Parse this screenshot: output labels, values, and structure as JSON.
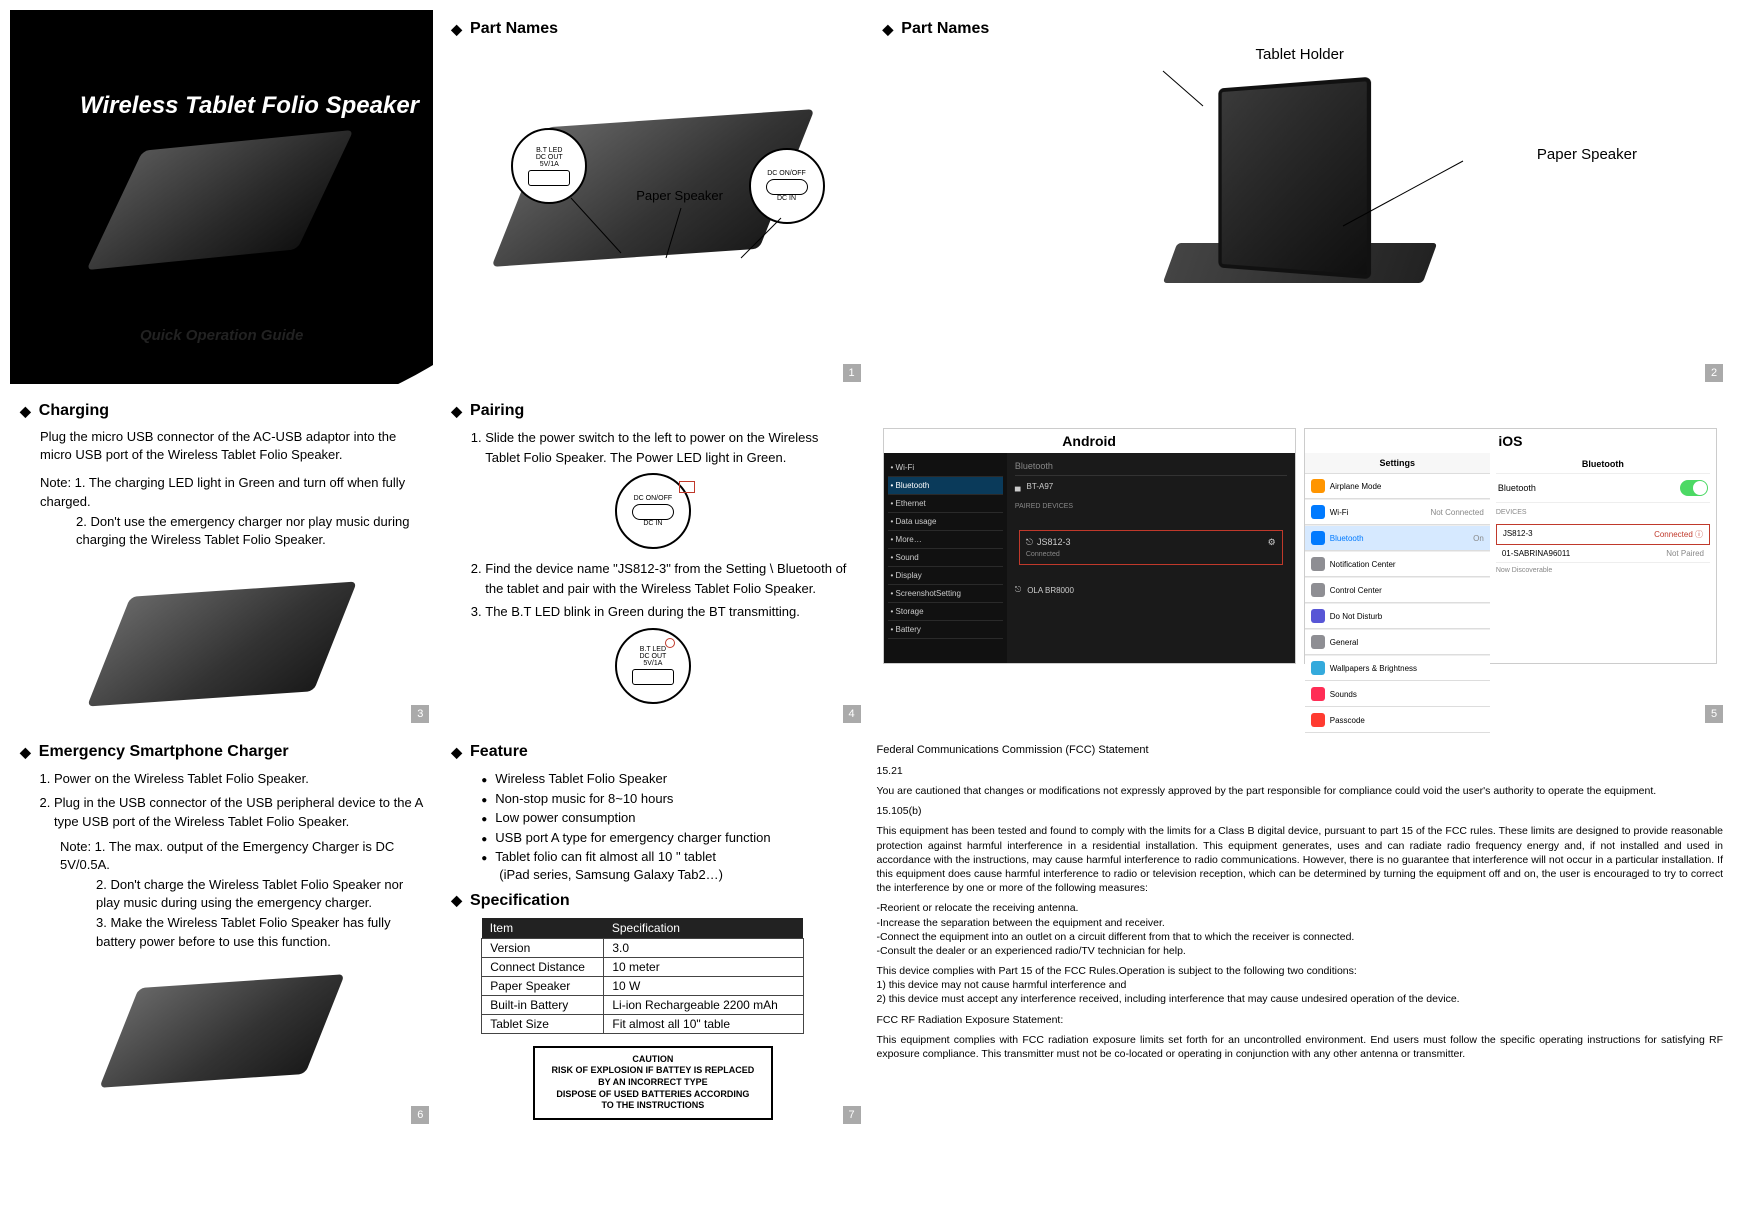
{
  "cover": {
    "title": "Wireless Tablet Folio Speaker",
    "subtitle": "Quick Operation Guide"
  },
  "partNames1": {
    "heading": "Part Names",
    "labels": {
      "btLed": "B.T LED",
      "dcOut": "DC OUT\n5V/1A",
      "paperSpeaker": "Paper Speaker",
      "dcOnOff": "DC ON/OFF",
      "dcIn": "DC IN"
    },
    "pageNum": "1"
  },
  "partNames2": {
    "heading": "Part Names",
    "labels": {
      "tabletHolder": "Tablet Holder",
      "paperSpeaker": "Paper Speaker"
    },
    "pageNum": "2"
  },
  "charging": {
    "heading": "Charging",
    "intro": "Plug the micro USB connector of the AC-USB adaptor into the micro USB port of the Wireless Tablet Folio Speaker.",
    "noteLead": "Note: 1. The charging LED light in Green and turn off when fully charged.",
    "note2": "2. Don't use the emergency charger nor play music during charging the Wireless Tablet Folio Speaker.",
    "pageNum": "3"
  },
  "pairing": {
    "heading": "Pairing",
    "step1": "Slide the power switch to the left to power on the Wireless Tablet Folio Speaker.    The Power LED light in Green.",
    "step2": "Find the device name \"JS812-3\" from the Setting \\ Bluetooth of the tablet and pair with the Wireless Tablet Folio Speaker.",
    "step3": "The B.T LED blink in Green during the BT transmitting.",
    "circleTop": {
      "label1": "DC ON/OFF",
      "label2": "DC IN"
    },
    "circleBottom": {
      "label1": "B.T LED",
      "label2": "DC OUT\n5V/1A"
    },
    "pageNum": "4"
  },
  "os": {
    "androidTitle": "Android",
    "iosTitle": "iOS",
    "android": {
      "sideItems": [
        "Wi-Fi",
        "Bluetooth",
        "Ethernet",
        "Data usage",
        "More…",
        "Sound",
        "Display",
        "ScreenshotSetting",
        "Storage",
        "Battery"
      ],
      "header": "Bluetooth",
      "myDevice": "BT-A97",
      "paired": "PAIRED DEVICES",
      "device": "JS812-3",
      "deviceStatus": "Connected",
      "other": "OLA BR8000"
    },
    "ios": {
      "headerLeft": "Settings",
      "headerRight": "Bluetooth",
      "rows": [
        {
          "color": "#ff9500",
          "label": "Airplane Mode"
        },
        {
          "color": "#007aff",
          "label": "Wi-Fi",
          "right": "Not Connected"
        },
        {
          "color": "#007aff",
          "label": "Bluetooth",
          "right": "On",
          "active": true
        },
        {
          "color": "#8e8e93",
          "label": "Notification Center"
        },
        {
          "color": "#8e8e93",
          "label": "Control Center"
        },
        {
          "color": "#5856d6",
          "label": "Do Not Disturb"
        },
        {
          "color": "#8e8e93",
          "label": "General"
        },
        {
          "color": "#34aadc",
          "label": "Wallpapers & Brightness"
        },
        {
          "color": "#ff2d55",
          "label": "Sounds"
        },
        {
          "color": "#ff3b30",
          "label": "Passcode"
        }
      ],
      "btToggleLabel": "Bluetooth",
      "devicesHeader": "DEVICES",
      "connectedDevice": "JS812-3",
      "connectedStatus": "Connected ⓘ",
      "otherDevice": "01-SABRINA96011",
      "otherStatus": "Not Paired",
      "footer": "Now Discoverable"
    },
    "pageNum": "5"
  },
  "emergency": {
    "heading": "Emergency Smartphone Charger",
    "step1": "Power on the Wireless Tablet Folio Speaker.",
    "step2": "Plug in the USB connector of the USB peripheral device to the A type USB port of the Wireless Tablet Folio Speaker.",
    "noteLead": "Note: 1. The max. output of the Emergency Charger is DC 5V/0.5A.",
    "note2": "2. Don't charge the Wireless Tablet Folio Speaker nor play music during using the emergency charger.",
    "note3": "3. Make the Wireless Tablet Folio Speaker has fully battery power before to use this function.",
    "pageNum": "6"
  },
  "feature": {
    "heading": "Feature",
    "items": [
      "Wireless Tablet Folio Speaker",
      "Non-stop music for 8~10 hours",
      "Low power consumption",
      "USB port A type for emergency charger function",
      "Tablet folio can fit almost all 10 \" tablet",
      "  (iPad series, Samsung Galaxy Tab2…)"
    ]
  },
  "spec": {
    "heading": "Specification",
    "headers": [
      "Item",
      "Specification"
    ],
    "rows": [
      [
        "Version",
        "3.0"
      ],
      [
        "Connect Distance",
        "10 meter"
      ],
      [
        "Paper Speaker",
        "10 W"
      ],
      [
        "Built-in Battery",
        "Li-ion Rechargeable 2200 mAh"
      ],
      [
        "Tablet Size",
        "Fit almost all 10\" table"
      ]
    ],
    "caution": {
      "l1": "CAUTION",
      "l2": "RISK OF EXPLOSION IF BATTEY IS REPLACED",
      "l3": "BY AN INCORRECT TYPE",
      "l4": "DISPOSE OF USED BATTERIES ACCORDING",
      "l5": "TO THE INSTRUCTIONS"
    },
    "pageNum": "7"
  },
  "fcc": {
    "title": "Federal Communications Commission (FCC) Statement",
    "h1": "15.21",
    "p1": "You are cautioned that changes or modifications not expressly approved by the part responsible for compliance could void the user's authority to operate the equipment.",
    "h2": "15.105(b)",
    "p2": "This equipment has been tested and found to comply with the limits for a Class B digital device, pursuant to part 15 of the FCC rules. These limits are designed to provide reasonable protection against harmful interference in a residential installation. This equipment generates, uses and can radiate radio frequency energy and, if not installed and used in accordance with the instructions, may cause harmful interference to radio communications. However, there is no guarantee that interference will not occur in a particular installation. If this equipment does cause harmful interference to radio or television reception, which can be determined by turning the equipment off and on, the user is encouraged to try to correct the interference by one or more of the following measures:",
    "m1": "-Reorient or relocate the receiving antenna.",
    "m2": "-Increase the separation between the equipment and receiver.",
    "m3": "-Connect the equipment into an outlet on a circuit different from that to which the receiver is connected.",
    "m4": "-Consult the dealer or an experienced radio/TV technician for help.",
    "p3a": "This device complies with Part 15 of the FCC Rules.Operation is subject to the following two conditions:",
    "p3b": "1) this device may not cause harmful interference and",
    "p3c": "2) this device must accept any interference received, including interference that may cause undesired operation of the device.",
    "h3": "FCC RF Radiation Exposure Statement:",
    "p4": "This equipment complies with FCC radiation exposure limits set forth for an uncontrolled environment. End users must follow the specific operating instructions for satisfying RF exposure compliance. This transmitter must not be co-located or operating in conjunction with any other antenna or transmitter."
  }
}
